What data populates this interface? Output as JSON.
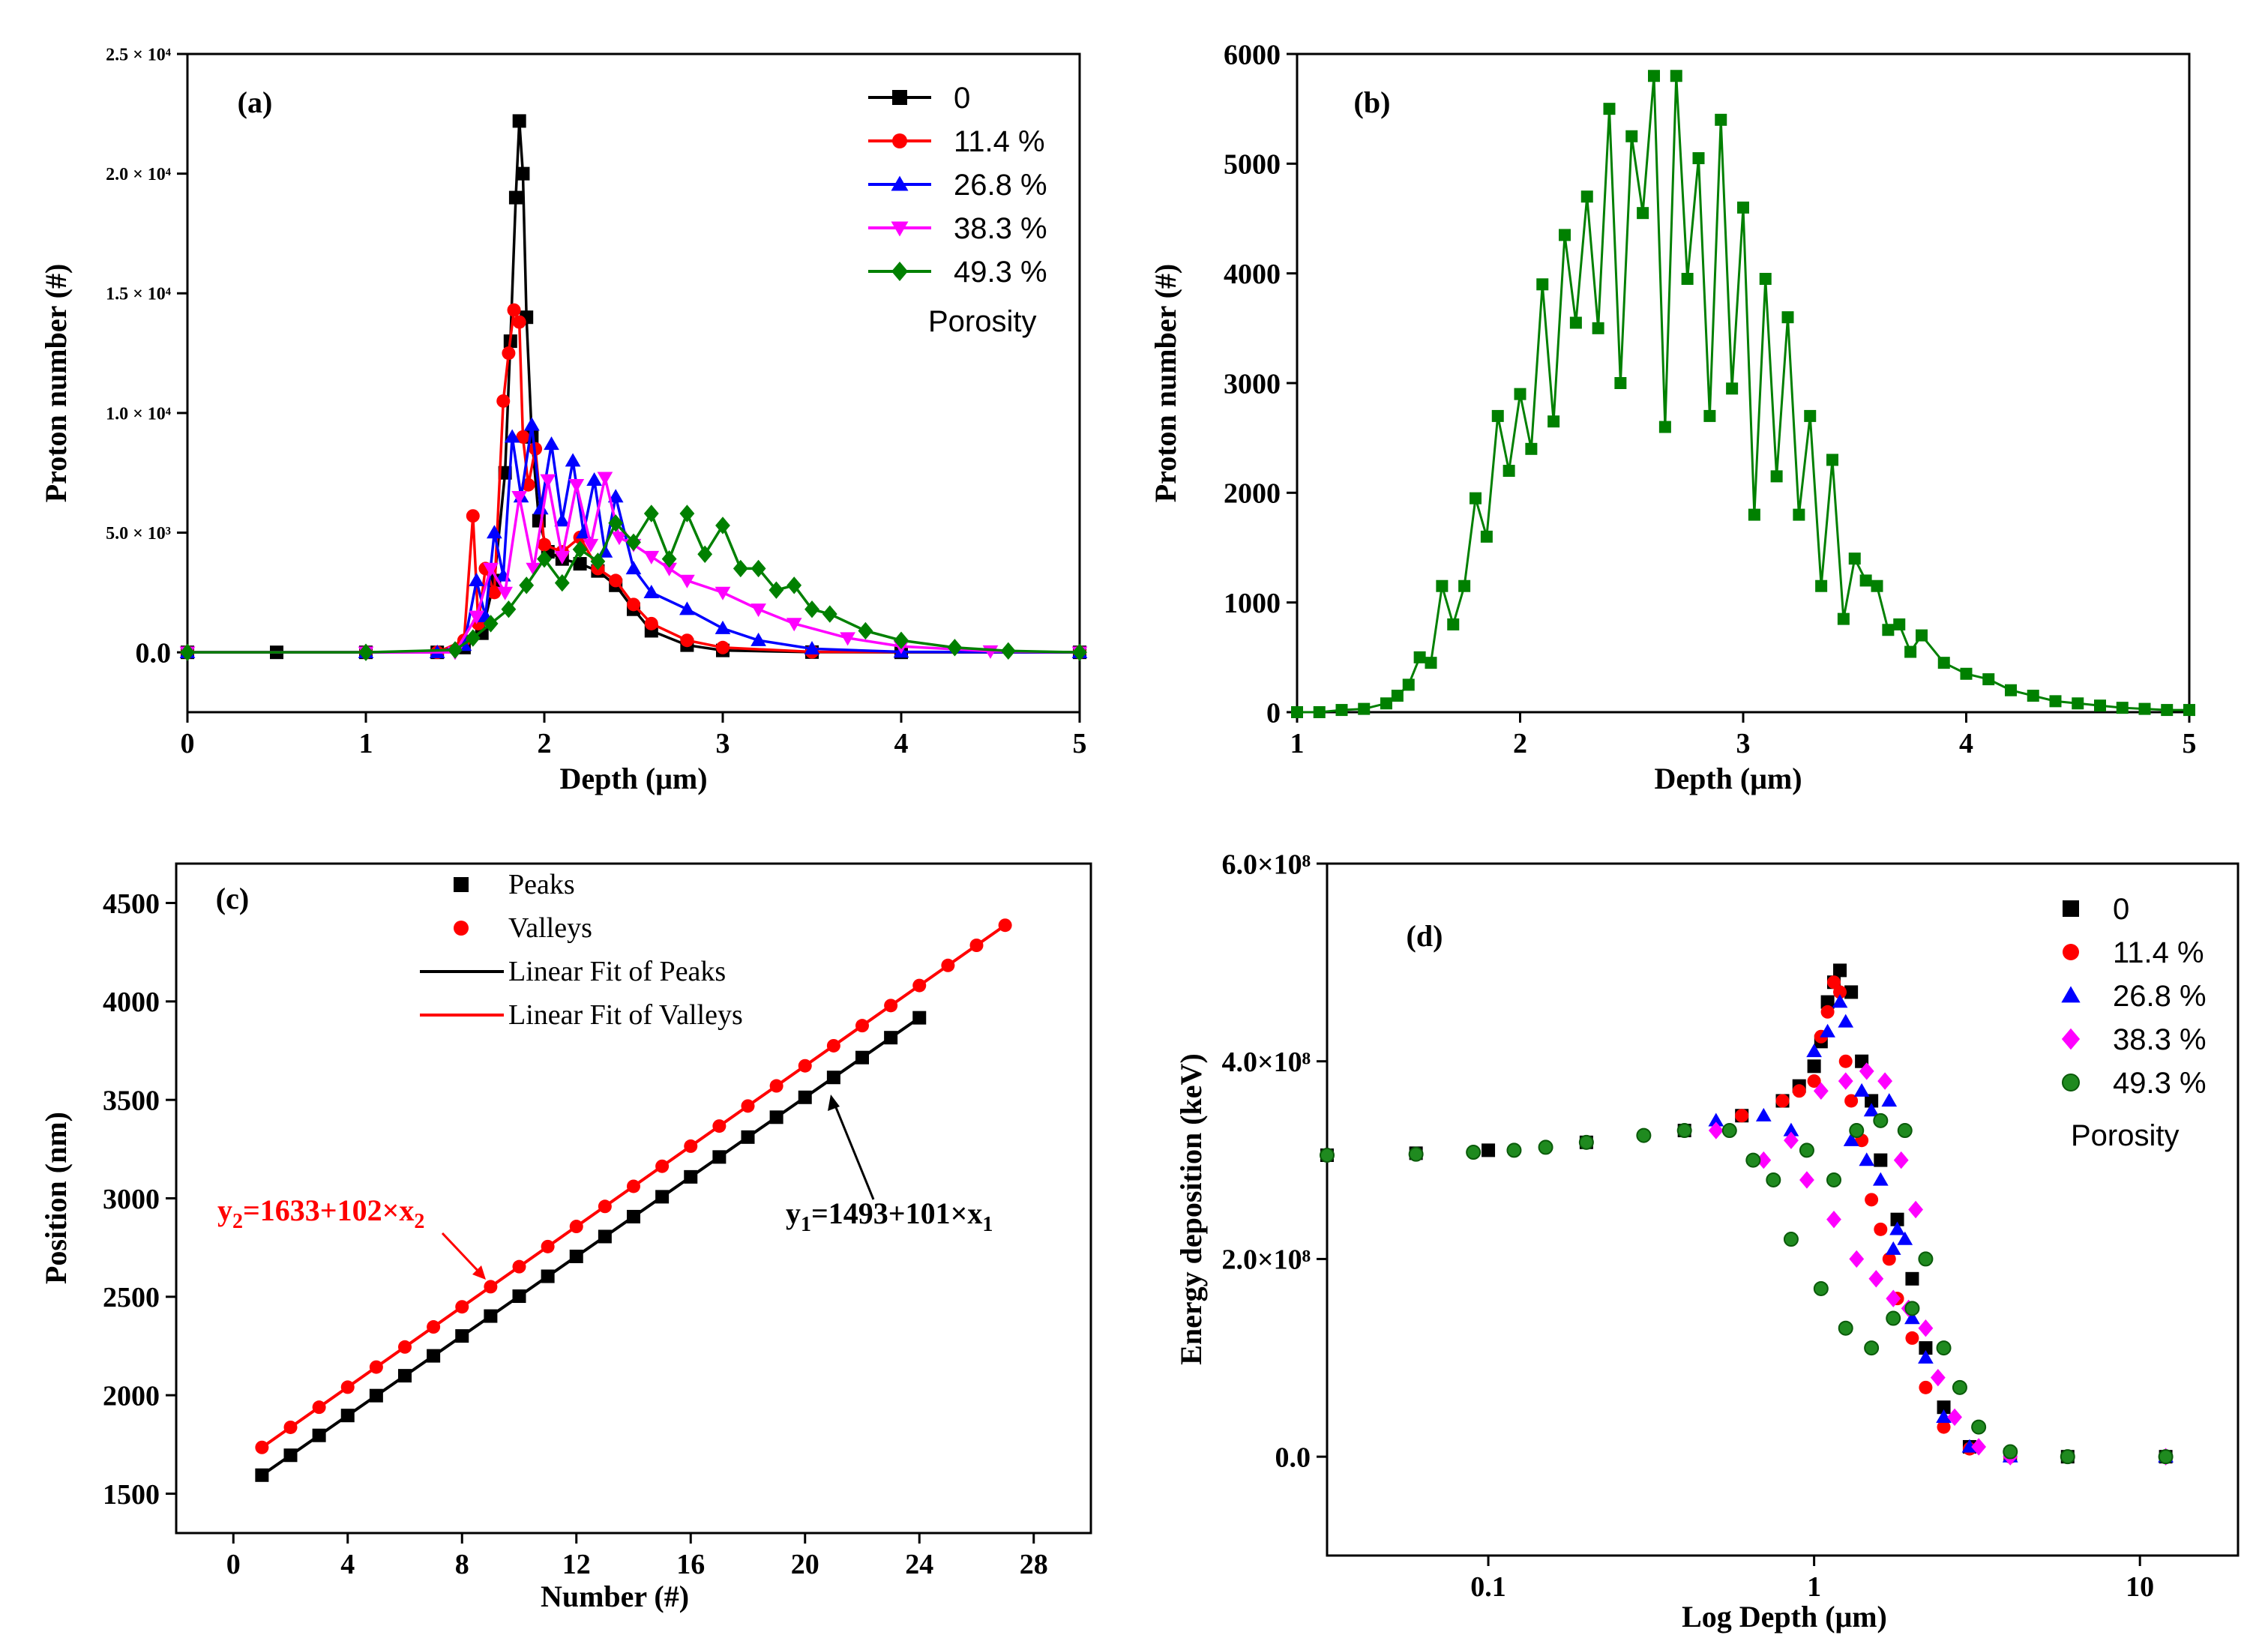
{
  "chart_data": [
    {
      "id": "a",
      "type": "line",
      "panel_label": "(a)",
      "xlabel": "Depth (μm)",
      "ylabel": "Proton number (#)",
      "xlim": [
        0,
        5
      ],
      "ylim": [
        -2500,
        25000
      ],
      "xticks": [
        "0",
        "1",
        "2",
        "3",
        "4",
        "5"
      ],
      "yticks": [
        {
          "value": 0,
          "label": "0.0"
        },
        {
          "value": 5000,
          "label": "5.0 × 10³"
        },
        {
          "value": 10000,
          "label": "1.0 × 10⁴"
        },
        {
          "value": 15000,
          "label": "1.5 × 10⁴"
        },
        {
          "value": 20000,
          "label": "2.0 × 10⁴"
        },
        {
          "value": 25000,
          "label": "2.5 × 10⁴"
        }
      ],
      "legend_title": "Porosity",
      "legend_position": "top-right",
      "series": [
        {
          "name": "0",
          "color": "#000000",
          "marker": "square",
          "x": [
            0,
            0.5,
            1.0,
            1.4,
            1.55,
            1.65,
            1.72,
            1.78,
            1.81,
            1.84,
            1.86,
            1.88,
            1.9,
            1.93,
            1.97,
            2.02,
            2.1,
            2.2,
            2.3,
            2.4,
            2.5,
            2.6,
            2.8,
            3.0,
            3.5,
            4.0,
            5.0
          ],
          "y": [
            0,
            0,
            0,
            0,
            200,
            800,
            3000,
            7500,
            13000,
            19000,
            22200,
            20000,
            14000,
            9000,
            5500,
            4200,
            3900,
            3700,
            3400,
            2800,
            1800,
            900,
            300,
            80,
            10,
            0,
            0
          ]
        },
        {
          "name": "11.4 %",
          "color": "#ff0000",
          "marker": "circle",
          "x": [
            0,
            1.0,
            1.4,
            1.55,
            1.6,
            1.63,
            1.67,
            1.72,
            1.77,
            1.8,
            1.83,
            1.86,
            1.88,
            1.91,
            1.95,
            2.0,
            2.1,
            2.2,
            2.3,
            2.4,
            2.5,
            2.6,
            2.8,
            3.0,
            3.5,
            5.0
          ],
          "y": [
            0,
            0,
            0,
            500,
            5700,
            1200,
            3500,
            2500,
            10500,
            12500,
            14300,
            13800,
            9000,
            7000,
            8500,
            4500,
            4200,
            4800,
            3500,
            3000,
            2000,
            1200,
            500,
            200,
            20,
            0
          ]
        },
        {
          "name": "26.8 %",
          "color": "#0000ff",
          "marker": "triangle-up",
          "x": [
            0,
            1.0,
            1.4,
            1.55,
            1.62,
            1.67,
            1.72,
            1.77,
            1.82,
            1.87,
            1.93,
            1.98,
            2.04,
            2.1,
            2.16,
            2.22,
            2.28,
            2.34,
            2.4,
            2.5,
            2.6,
            2.8,
            3.0,
            3.2,
            3.5,
            4.0,
            5.0
          ],
          "y": [
            0,
            0,
            0,
            300,
            3000,
            1500,
            5000,
            3200,
            9000,
            6500,
            9500,
            6000,
            8700,
            5500,
            8000,
            5000,
            7200,
            4200,
            6500,
            3500,
            2500,
            1800,
            1000,
            500,
            150,
            20,
            0
          ]
        },
        {
          "name": "38.3 %",
          "color": "#ff00ff",
          "marker": "triangle-down",
          "x": [
            0,
            1.0,
            1.5,
            1.62,
            1.7,
            1.78,
            1.86,
            1.94,
            2.02,
            2.1,
            2.18,
            2.26,
            2.34,
            2.42,
            2.5,
            2.6,
            2.7,
            2.8,
            3.0,
            3.2,
            3.4,
            3.7,
            4.0,
            4.5,
            5.0
          ],
          "y": [
            0,
            0,
            0,
            1500,
            3500,
            2500,
            6500,
            3500,
            7200,
            4000,
            7000,
            4500,
            7300,
            4800,
            4500,
            4000,
            3500,
            3000,
            2500,
            1800,
            1200,
            600,
            250,
            50,
            0
          ]
        },
        {
          "name": "49.3 %",
          "color": "#008000",
          "marker": "diamond",
          "x": [
            0,
            1.0,
            1.5,
            1.6,
            1.7,
            1.8,
            1.9,
            2.0,
            2.1,
            2.2,
            2.3,
            2.4,
            2.5,
            2.6,
            2.7,
            2.8,
            2.9,
            3.0,
            3.1,
            3.2,
            3.3,
            3.4,
            3.5,
            3.6,
            3.8,
            4.0,
            4.3,
            4.6,
            5.0
          ],
          "y": [
            0,
            0,
            100,
            600,
            1200,
            1800,
            2800,
            3900,
            2900,
            4300,
            3800,
            5400,
            4600,
            5800,
            3900,
            5800,
            4100,
            5300,
            3500,
            3500,
            2600,
            2800,
            1800,
            1600,
            900,
            500,
            200,
            60,
            0
          ]
        }
      ]
    },
    {
      "id": "b",
      "type": "line",
      "panel_label": "(b)",
      "xlabel": "Depth (μm)",
      "ylabel": "Proton number (#)",
      "xlim": [
        1,
        5
      ],
      "ylim": [
        0,
        6000
      ],
      "xticks": [
        "1",
        "2",
        "3",
        "4",
        "5"
      ],
      "yticks": [
        "0",
        "1000",
        "2000",
        "3000",
        "4000",
        "5000",
        "6000"
      ],
      "series": [
        {
          "name": "49.3 %",
          "color": "#008000",
          "marker": "square",
          "x": [
            1.0,
            1.1,
            1.2,
            1.3,
            1.4,
            1.45,
            1.5,
            1.55,
            1.6,
            1.65,
            1.7,
            1.75,
            1.8,
            1.85,
            1.9,
            1.95,
            2.0,
            2.05,
            2.1,
            2.15,
            2.2,
            2.25,
            2.3,
            2.35,
            2.4,
            2.45,
            2.5,
            2.55,
            2.6,
            2.65,
            2.7,
            2.75,
            2.8,
            2.85,
            2.9,
            2.95,
            3.0,
            3.05,
            3.1,
            3.15,
            3.2,
            3.25,
            3.3,
            3.35,
            3.4,
            3.45,
            3.5,
            3.55,
            3.6,
            3.65,
            3.7,
            3.75,
            3.8,
            3.9,
            4.0,
            4.1,
            4.2,
            4.3,
            4.4,
            4.5,
            4.6,
            4.7,
            4.8,
            4.9,
            5.0
          ],
          "y": [
            0,
            0,
            20,
            30,
            80,
            150,
            250,
            500,
            450,
            1150,
            800,
            1150,
            1950,
            1600,
            2700,
            2200,
            2900,
            2400,
            3900,
            2650,
            4350,
            3550,
            4700,
            3500,
            5500,
            3000,
            5250,
            4550,
            5800,
            2600,
            5800,
            3950,
            5050,
            2700,
            5400,
            2950,
            4600,
            1800,
            3950,
            2150,
            3600,
            1800,
            2700,
            1150,
            2300,
            850,
            1400,
            1200,
            1150,
            750,
            800,
            550,
            700,
            450,
            350,
            300,
            200,
            150,
            100,
            80,
            60,
            40,
            30,
            20,
            20
          ]
        }
      ]
    },
    {
      "id": "c",
      "type": "scatter",
      "panel_label": "(c)",
      "xlabel": "Number (#)",
      "ylabel": "Position (nm)",
      "xlim": [
        -2,
        30
      ],
      "ylim": [
        1300,
        4700
      ],
      "xticks": [
        "0",
        "4",
        "8",
        "12",
        "16",
        "20",
        "24",
        "28"
      ],
      "yticks": [
        "1500",
        "2000",
        "2500",
        "3000",
        "3500",
        "4000",
        "4500"
      ],
      "legend_position": "top-left",
      "legend": [
        "Peaks",
        "Valleys",
        "Linear Fit of Peaks",
        "Linear Fit of Valleys"
      ],
      "series": [
        {
          "name": "Peaks",
          "color": "#000000",
          "marker": "square",
          "fit": "Linear Fit of Peaks",
          "x": [
            1,
            2,
            3,
            4,
            5,
            6,
            7,
            8,
            9,
            10,
            11,
            12,
            13,
            14,
            15,
            16,
            17,
            18,
            19,
            20,
            21,
            22,
            23,
            24
          ],
          "y": [
            1594,
            1695,
            1796,
            1897,
            1998,
            2099,
            2200,
            2301,
            2402,
            2503,
            2604,
            2705,
            2806,
            2907,
            3008,
            3109,
            3210,
            3311,
            3412,
            3513,
            3614,
            3715,
            3816,
            3917
          ]
        },
        {
          "name": "Valleys",
          "color": "#ff0000",
          "marker": "circle",
          "fit": "Linear Fit of Valleys",
          "x": [
            1,
            2,
            3,
            4,
            5,
            6,
            7,
            8,
            9,
            10,
            11,
            12,
            13,
            14,
            15,
            16,
            17,
            18,
            19,
            20,
            21,
            22,
            23,
            24,
            25,
            26,
            27
          ],
          "y": [
            1735,
            1837,
            1939,
            2041,
            2143,
            2245,
            2347,
            2449,
            2551,
            2653,
            2755,
            2857,
            2959,
            3061,
            3163,
            3265,
            3367,
            3469,
            3571,
            3673,
            3775,
            3877,
            3979,
            4081,
            4183,
            4285,
            4387
          ]
        }
      ],
      "fits": [
        {
          "name": "Linear Fit of Peaks",
          "intercept": 1493,
          "slope": 101,
          "x_range": [
            1,
            24
          ],
          "color": "#000000"
        },
        {
          "name": "Linear Fit of Valleys",
          "intercept": 1633,
          "slope": 102,
          "x_range": [
            1,
            27
          ],
          "color": "#ff0000"
        }
      ],
      "annotations": [
        {
          "text_main": "y",
          "sub1": "1",
          "text_mid": "=1493+101×x",
          "sub2": "1",
          "color": "#000000"
        },
        {
          "text_main": "y",
          "sub1": "2",
          "text_mid": "=1633+102×x",
          "sub2": "2",
          "color": "#ff0000"
        }
      ]
    },
    {
      "id": "d",
      "type": "scatter",
      "panel_label": "(d)",
      "xlabel": "Log Depth (μm)",
      "ylabel": "Energy deposition (keV)",
      "xscale": "log",
      "xlim": [
        0.032,
        20
      ],
      "ylim": [
        -100000000,
        600000000
      ],
      "xticks": [
        "0.1",
        "1",
        "10"
      ],
      "yticks": [
        {
          "value": 0,
          "label": "0.0"
        },
        {
          "value": 200000000,
          "label": "2.0×10⁸"
        },
        {
          "value": 400000000,
          "label": "4.0×10⁸"
        },
        {
          "value": 600000000,
          "label": "6.0×10⁸"
        }
      ],
      "legend_title": "Porosity",
      "legend_position": "top-right",
      "series": [
        {
          "name": "0",
          "color": "#000000",
          "marker": "square",
          "x": [
            0.032,
            0.06,
            0.1,
            0.2,
            0.4,
            0.6,
            0.8,
            0.9,
            1.0,
            1.05,
            1.1,
            1.15,
            1.2,
            1.3,
            1.4,
            1.5,
            1.6,
            1.8,
            2.0,
            2.2,
            2.5,
            3.0,
            4.0,
            6.0,
            12.0
          ],
          "y": [
            305000000,
            307000000,
            310000000,
            318000000,
            330000000,
            345000000,
            360000000,
            375000000,
            395000000,
            420000000,
            460000000,
            480000000,
            492000000,
            470000000,
            400000000,
            360000000,
            300000000,
            240000000,
            180000000,
            110000000,
            50000000,
            10000000,
            2000000,
            0,
            0
          ]
        },
        {
          "name": "11.4 %",
          "color": "#ff0000",
          "marker": "circle",
          "x": [
            0.6,
            0.8,
            0.9,
            1.0,
            1.05,
            1.1,
            1.15,
            1.2,
            1.25,
            1.3,
            1.4,
            1.5,
            1.6,
            1.7,
            1.8,
            2.0,
            2.2,
            2.5,
            3.0,
            4.0,
            12.0
          ],
          "y": [
            345000000,
            360000000,
            370000000,
            380000000,
            425000000,
            450000000,
            480000000,
            470000000,
            400000000,
            360000000,
            320000000,
            260000000,
            230000000,
            200000000,
            160000000,
            120000000,
            70000000,
            30000000,
            8000000,
            0,
            0
          ]
        },
        {
          "name": "26.8 %",
          "color": "#0000ff",
          "marker": "triangle-up",
          "x": [
            0.5,
            0.7,
            0.85,
            1.0,
            1.1,
            1.2,
            1.25,
            1.3,
            1.4,
            1.45,
            1.5,
            1.6,
            1.7,
            1.75,
            1.8,
            1.9,
            2.0,
            2.2,
            2.5,
            3.0,
            4.0,
            12.0
          ],
          "y": [
            340000000,
            345000000,
            330000000,
            410000000,
            430000000,
            460000000,
            440000000,
            320000000,
            370000000,
            300000000,
            350000000,
            280000000,
            360000000,
            210000000,
            230000000,
            220000000,
            140000000,
            100000000,
            40000000,
            10000000,
            0,
            0
          ]
        },
        {
          "name": "38.3 %",
          "color": "#ff00ff",
          "marker": "diamond",
          "x": [
            0.5,
            0.7,
            0.85,
            0.95,
            1.05,
            1.15,
            1.25,
            1.35,
            1.45,
            1.55,
            1.65,
            1.75,
            1.85,
            1.95,
            2.05,
            2.2,
            2.4,
            2.7,
            3.2,
            4.0,
            12.0
          ],
          "y": [
            330000000,
            300000000,
            320000000,
            280000000,
            370000000,
            240000000,
            380000000,
            200000000,
            390000000,
            180000000,
            380000000,
            160000000,
            300000000,
            150000000,
            250000000,
            130000000,
            80000000,
            40000000,
            10000000,
            0,
            0
          ]
        },
        {
          "name": "49.3 %",
          "color": "#008000",
          "marker": "circle",
          "x": [
            0.032,
            0.06,
            0.09,
            0.12,
            0.15,
            0.2,
            0.3,
            0.4,
            0.55,
            0.65,
            0.75,
            0.85,
            0.95,
            1.05,
            1.15,
            1.25,
            1.35,
            1.5,
            1.6,
            1.75,
            1.9,
            2.0,
            2.2,
            2.5,
            2.8,
            3.2,
            4.0,
            6.0,
            12.0
          ],
          "y": [
            305000000,
            306000000,
            308000000,
            310000000,
            313000000,
            318000000,
            325000000,
            330000000,
            330000000,
            300000000,
            280000000,
            220000000,
            310000000,
            170000000,
            280000000,
            130000000,
            330000000,
            110000000,
            340000000,
            140000000,
            330000000,
            150000000,
            200000000,
            110000000,
            70000000,
            30000000,
            5000000,
            0,
            0
          ]
        }
      ]
    }
  ]
}
